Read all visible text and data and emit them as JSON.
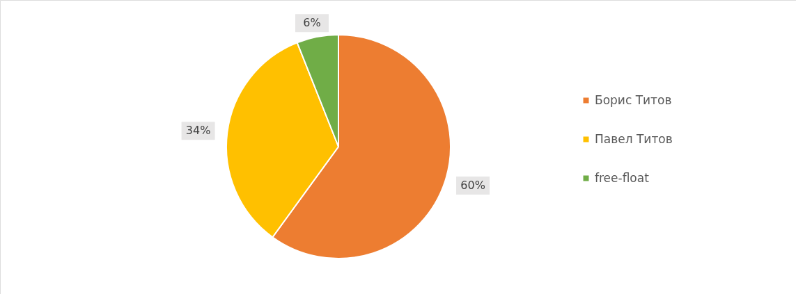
{
  "chart_data": {
    "type": "pie",
    "categories": [
      "Борис Титов",
      "Павел Титов",
      "free-float"
    ],
    "values": [
      60,
      34,
      6
    ],
    "colors": [
      "#ed7d31",
      "#ffc000",
      "#70ad47"
    ],
    "value_labels": [
      "60%",
      "34%",
      "6%"
    ],
    "legend": "right"
  }
}
